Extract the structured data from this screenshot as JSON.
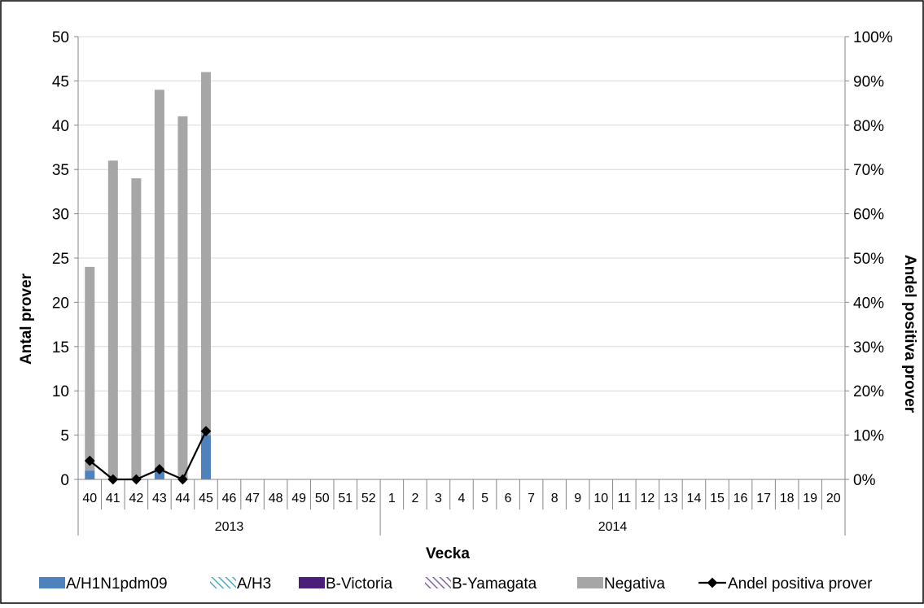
{
  "chart_data": {
    "type": "bar",
    "stacked": true,
    "title": "",
    "xlabel": "Vecka",
    "ylabel": "Antal prover",
    "ylabel_right": "Andel positiva prover",
    "ylim": [
      0,
      50
    ],
    "ylim_right": [
      0,
      100
    ],
    "y_ticks": [
      "0",
      "5",
      "10",
      "15",
      "20",
      "25",
      "30",
      "35",
      "40",
      "45",
      "50"
    ],
    "y_ticks_right": [
      "0%",
      "10%",
      "20%",
      "30%",
      "40%",
      "50%",
      "60%",
      "70%",
      "80%",
      "90%",
      "100%"
    ],
    "grid": true,
    "legend_position": "bottom",
    "categories": [
      "40",
      "41",
      "42",
      "43",
      "44",
      "45",
      "46",
      "47",
      "48",
      "49",
      "50",
      "51",
      "52",
      "1",
      "2",
      "3",
      "4",
      "5",
      "6",
      "7",
      "8",
      "9",
      "10",
      "11",
      "12",
      "13",
      "14",
      "15",
      "16",
      "17",
      "18",
      "19",
      "20"
    ],
    "year_groups": [
      {
        "label": "2013",
        "count": 13
      },
      {
        "label": "2014",
        "count": 20
      }
    ],
    "series": [
      {
        "name": "A/H1N1pdm09",
        "kind": "bar",
        "color": "#4f81bd",
        "pattern": "solid",
        "values": [
          1,
          0,
          0,
          1,
          0,
          5,
          null,
          null,
          null,
          null,
          null,
          null,
          null,
          null,
          null,
          null,
          null,
          null,
          null,
          null,
          null,
          null,
          null,
          null,
          null,
          null,
          null,
          null,
          null,
          null,
          null,
          null,
          null
        ]
      },
      {
        "name": "A/H3",
        "kind": "bar",
        "color": "#4bacc6",
        "pattern": "hatch",
        "values": [
          0,
          0,
          0,
          0,
          0,
          0,
          null,
          null,
          null,
          null,
          null,
          null,
          null,
          null,
          null,
          null,
          null,
          null,
          null,
          null,
          null,
          null,
          null,
          null,
          null,
          null,
          null,
          null,
          null,
          null,
          null,
          null,
          null
        ]
      },
      {
        "name": "B-Victoria",
        "kind": "bar",
        "color": "#4b1e7a",
        "pattern": "solid",
        "values": [
          0,
          0,
          0,
          0,
          0,
          0,
          null,
          null,
          null,
          null,
          null,
          null,
          null,
          null,
          null,
          null,
          null,
          null,
          null,
          null,
          null,
          null,
          null,
          null,
          null,
          null,
          null,
          null,
          null,
          null,
          null,
          null,
          null
        ]
      },
      {
        "name": "B-Yamagata",
        "kind": "bar",
        "color": "#8064a2",
        "pattern": "hatch",
        "values": [
          0,
          0,
          0,
          0,
          0,
          0,
          null,
          null,
          null,
          null,
          null,
          null,
          null,
          null,
          null,
          null,
          null,
          null,
          null,
          null,
          null,
          null,
          null,
          null,
          null,
          null,
          null,
          null,
          null,
          null,
          null,
          null,
          null
        ]
      },
      {
        "name": "Negativa",
        "kind": "bar",
        "color": "#a6a6a6",
        "pattern": "solid",
        "values": [
          23,
          36,
          34,
          43,
          41,
          41,
          null,
          null,
          null,
          null,
          null,
          null,
          null,
          null,
          null,
          null,
          null,
          null,
          null,
          null,
          null,
          null,
          null,
          null,
          null,
          null,
          null,
          null,
          null,
          null,
          null,
          null,
          null
        ]
      },
      {
        "name": "Andel positiva prover",
        "kind": "line",
        "axis": "right",
        "color": "#000000",
        "values": [
          4.2,
          0,
          0,
          2.3,
          0,
          10.9,
          null,
          null,
          null,
          null,
          null,
          null,
          null,
          null,
          null,
          null,
          null,
          null,
          null,
          null,
          null,
          null,
          null,
          null,
          null,
          null,
          null,
          null,
          null,
          null,
          null,
          null,
          null
        ]
      }
    ]
  }
}
